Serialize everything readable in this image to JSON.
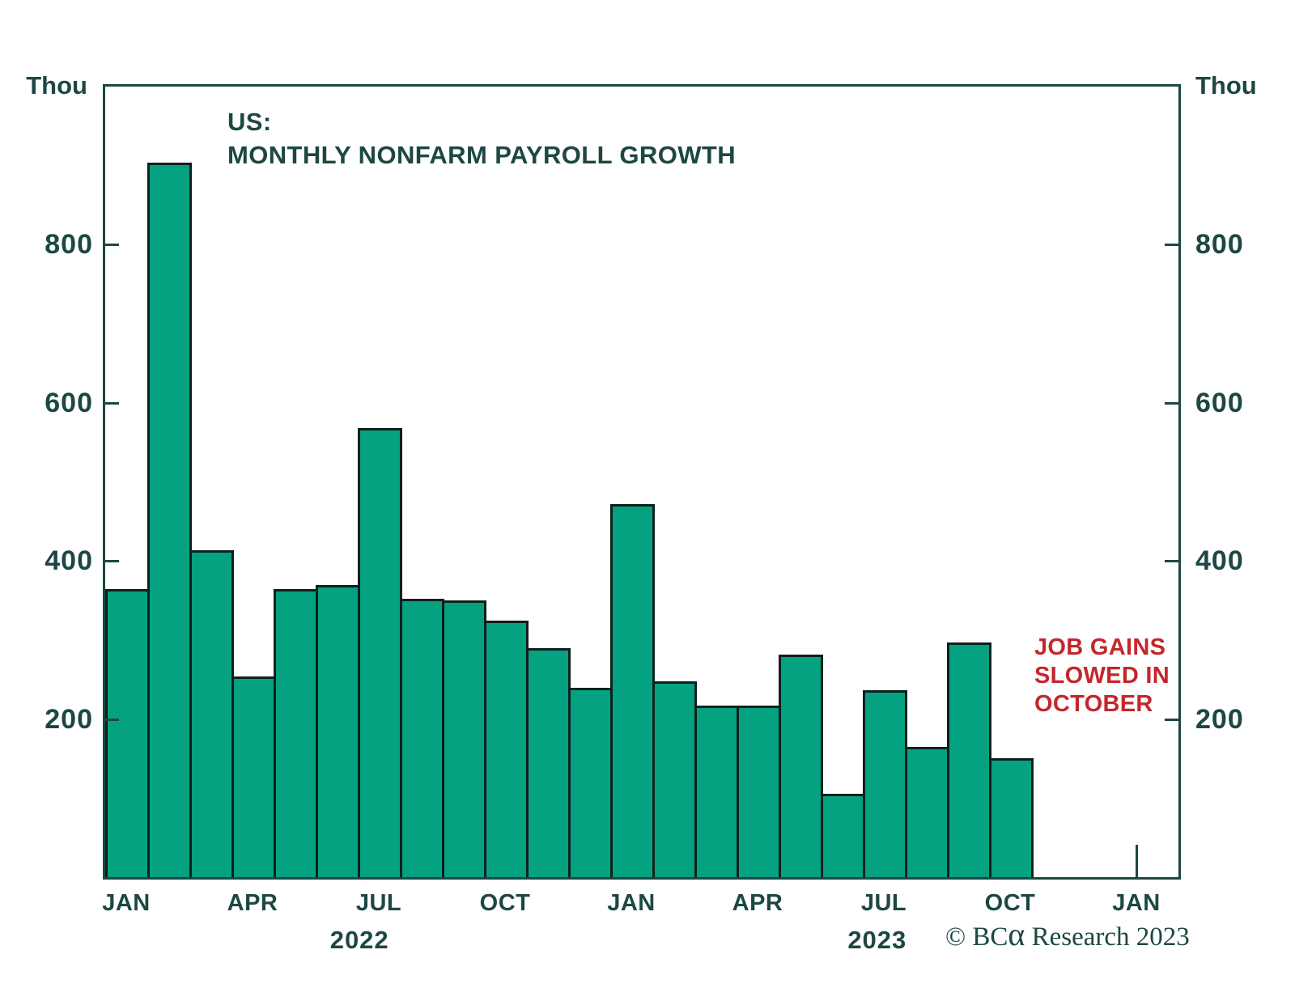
{
  "title": {
    "line1": "US:",
    "line2": "MONTHLY NONFARM PAYROLL GROWTH"
  },
  "axis": {
    "unit_label_left": "Thou",
    "unit_label_right": "Thou"
  },
  "annotation": {
    "line1": "JOB GAINS",
    "line2": "SLOWED IN",
    "line3": "OCTOBER",
    "color": "#c3272c"
  },
  "footer": {
    "copyright_symbol": "© ",
    "brand": "BC",
    "brand_alpha": "α",
    "brand_rest": " Research",
    "year": " 2023"
  },
  "colors": {
    "bar_fill": "#04a280",
    "bar_border": "#0d201c",
    "axis": "#1d4743"
  },
  "chart_data": {
    "type": "bar",
    "title": "US: MONTHLY NONFARM PAYROLL GROWTH",
    "ylabel": "Thou",
    "ylim": [
      0,
      1000
    ],
    "yticks": [
      200,
      400,
      600,
      800
    ],
    "grid": false,
    "x": [
      "JAN 2022",
      "FEB 2022",
      "MAR 2022",
      "APR 2022",
      "MAY 2022",
      "JUN 2022",
      "JUL 2022",
      "AUG 2022",
      "SEP 2022",
      "OCT 2022",
      "NOV 2022",
      "DEC 2022",
      "JAN 2023",
      "FEB 2023",
      "MAR 2023",
      "APR 2023",
      "MAY 2023",
      "JUN 2023",
      "JUL 2023",
      "AUG 2023",
      "SEP 2023",
      "OCT 2023"
    ],
    "values": [
      364,
      904,
      414,
      254,
      364,
      370,
      568,
      352,
      350,
      324,
      290,
      239,
      472,
      248,
      217,
      217,
      281,
      105,
      236,
      165,
      297,
      150
    ],
    "xtick_labels": [
      {
        "text": "JAN",
        "month_index": 0
      },
      {
        "text": "APR",
        "month_index": 3
      },
      {
        "text": "JUL",
        "month_index": 6
      },
      {
        "text": "OCT",
        "month_index": 9
      },
      {
        "text": "JAN",
        "month_index": 12
      },
      {
        "text": "APR",
        "month_index": 15
      },
      {
        "text": "JUL",
        "month_index": 18
      },
      {
        "text": "OCT",
        "month_index": 21
      },
      {
        "text": "JAN",
        "month_index": 24
      }
    ],
    "year_labels": [
      {
        "text": "2022",
        "slot": 6.1
      },
      {
        "text": "2023",
        "slot": 18.4
      }
    ],
    "annotation": "JOB GAINS SLOWED IN OCTOBER"
  }
}
